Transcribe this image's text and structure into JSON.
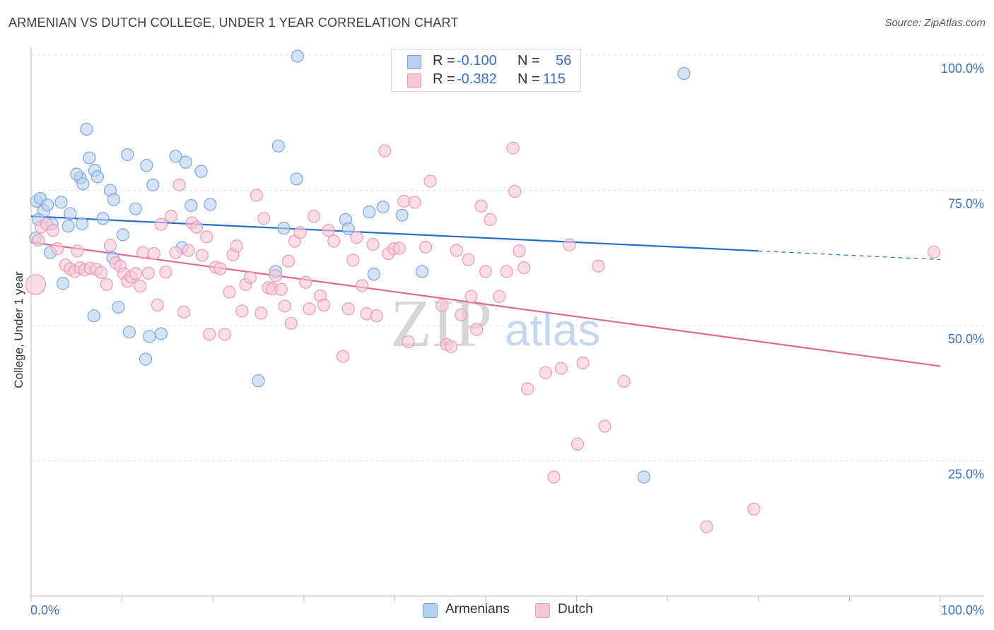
{
  "title": "ARMENIAN VS DUTCH COLLEGE, UNDER 1 YEAR CORRELATION CHART",
  "source": "Source: ZipAtlas.com",
  "watermark": {
    "zip": "ZIP",
    "atlas": "atlas"
  },
  "legend_stats": [
    {
      "r_label": "R =",
      "r_value": "-0.100",
      "n_label": "N =",
      "n_value": "56",
      "series": "Armenians"
    },
    {
      "r_label": "R =",
      "r_value": "-0.382",
      "n_label": "N =",
      "n_value": "115",
      "series": "Dutch"
    }
  ],
  "colors": {
    "armenians_fill": "#b8d1f0",
    "armenians_stroke": "#7aa6de",
    "armenians_line": "#2a6cc8",
    "dutch_fill": "#f7c6d6",
    "dutch_stroke": "#ec98b6",
    "dutch_line": "#e0698f",
    "grid": "#e3e3e3",
    "tick_label": "#3a6fc4"
  },
  "chart_data": {
    "type": "scatter",
    "title": "ARMENIAN VS DUTCH COLLEGE, UNDER 1 YEAR CORRELATION CHART",
    "xlabel": "",
    "ylabel": "College, Under 1 year",
    "xlim": [
      0,
      100
    ],
    "ylim": [
      0,
      100
    ],
    "x_tick_labels": [
      "0.0%",
      "100.0%"
    ],
    "y_ticks": [
      25,
      50,
      75,
      100
    ],
    "y_tick_labels": [
      "25.0%",
      "50.0%",
      "75.0%",
      "100.0%"
    ],
    "grid": true,
    "legend_position": "bottom-center",
    "series": [
      {
        "name": "Armenians",
        "r": -0.1,
        "n": 56,
        "trend": {
          "x0": 0,
          "y0": 70.2,
          "x1": 80,
          "y1": 63.8,
          "dashed_to_x": 100,
          "dashed_to_y": 62.2
        },
        "points": [
          [
            0.5,
            66.2
          ],
          [
            0.6,
            73.0
          ],
          [
            1.0,
            73.5
          ],
          [
            1.4,
            71.2
          ],
          [
            1.8,
            72.3
          ],
          [
            2.1,
            63.5
          ],
          [
            2.3,
            68.8
          ],
          [
            3.3,
            72.8
          ],
          [
            3.5,
            57.8
          ],
          [
            4.1,
            68.4
          ],
          [
            4.3,
            70.7
          ],
          [
            5.4,
            77.3
          ],
          [
            5.0,
            78.0
          ],
          [
            5.6,
            68.8
          ],
          [
            5.7,
            76.2
          ],
          [
            6.1,
            86.3
          ],
          [
            6.4,
            81.0
          ],
          [
            7.0,
            78.7
          ],
          [
            7.3,
            77.5
          ],
          [
            7.9,
            69.8
          ],
          [
            8.7,
            75.0
          ],
          [
            9.1,
            73.3
          ],
          [
            9.6,
            53.4
          ],
          [
            10.1,
            66.8
          ],
          [
            10.6,
            81.6
          ],
          [
            10.8,
            48.8
          ],
          [
            11.5,
            71.6
          ],
          [
            12.6,
            43.8
          ],
          [
            12.7,
            79.6
          ],
          [
            13.0,
            48.0
          ],
          [
            13.4,
            76.0
          ],
          [
            14.3,
            48.5
          ],
          [
            15.9,
            81.3
          ],
          [
            16.6,
            64.4
          ],
          [
            17.0,
            80.2
          ],
          [
            17.6,
            72.2
          ],
          [
            18.7,
            78.5
          ],
          [
            19.7,
            72.4
          ],
          [
            9.0,
            62.5
          ],
          [
            6.9,
            51.8
          ],
          [
            25.0,
            39.8
          ],
          [
            26.9,
            60.0
          ],
          [
            27.2,
            83.2
          ],
          [
            27.8,
            68.0
          ],
          [
            29.2,
            77.1
          ],
          [
            29.3,
            99.8
          ],
          [
            34.6,
            69.6
          ],
          [
            34.9,
            67.9
          ],
          [
            37.2,
            71.0
          ],
          [
            37.7,
            59.5
          ],
          [
            38.7,
            71.9
          ],
          [
            40.8,
            70.4
          ],
          [
            43.0,
            60.0
          ],
          [
            67.4,
            22.0
          ],
          [
            71.8,
            96.6
          ],
          [
            0.8,
            69.6
          ]
        ]
      },
      {
        "name": "Dutch",
        "r": -0.382,
        "n": 115,
        "trend": {
          "x0": 0,
          "y0": 65.4,
          "x1": 100,
          "y1": 42.5
        },
        "points": [
          [
            0.5,
            57.6
          ],
          [
            0.8,
            65.8
          ],
          [
            1.1,
            68.2
          ],
          [
            1.7,
            68.8
          ],
          [
            2.4,
            67.6
          ],
          [
            2.9,
            64.2
          ],
          [
            3.8,
            61.2
          ],
          [
            4.3,
            60.5
          ],
          [
            4.8,
            60.0
          ],
          [
            5.1,
            63.8
          ],
          [
            5.4,
            60.7
          ],
          [
            5.9,
            60.3
          ],
          [
            6.5,
            60.6
          ],
          [
            7.2,
            60.4
          ],
          [
            7.7,
            59.8
          ],
          [
            8.3,
            57.6
          ],
          [
            8.7,
            64.8
          ],
          [
            9.3,
            61.6
          ],
          [
            9.8,
            61.0
          ],
          [
            10.2,
            59.6
          ],
          [
            10.6,
            58.2
          ],
          [
            11.0,
            59.0
          ],
          [
            11.5,
            59.6
          ],
          [
            12.0,
            57.3
          ],
          [
            12.3,
            63.5
          ],
          [
            12.9,
            59.7
          ],
          [
            13.5,
            63.3
          ],
          [
            13.9,
            53.8
          ],
          [
            14.3,
            68.7
          ],
          [
            14.8,
            59.9
          ],
          [
            15.4,
            70.2
          ],
          [
            15.9,
            63.5
          ],
          [
            16.3,
            76.0
          ],
          [
            16.8,
            52.5
          ],
          [
            17.3,
            63.9
          ],
          [
            17.7,
            69.0
          ],
          [
            18.2,
            68.2
          ],
          [
            18.8,
            63.0
          ],
          [
            19.3,
            66.4
          ],
          [
            19.6,
            48.4
          ],
          [
            20.3,
            60.8
          ],
          [
            20.8,
            60.5
          ],
          [
            21.3,
            48.4
          ],
          [
            21.8,
            56.2
          ],
          [
            22.2,
            63.1
          ],
          [
            22.6,
            64.7
          ],
          [
            23.2,
            52.7
          ],
          [
            23.6,
            57.6
          ],
          [
            24.1,
            58.9
          ],
          [
            24.8,
            74.1
          ],
          [
            25.3,
            52.3
          ],
          [
            25.6,
            69.8
          ],
          [
            26.1,
            57.0
          ],
          [
            26.5,
            56.8
          ],
          [
            26.9,
            59.2
          ],
          [
            27.5,
            56.7
          ],
          [
            27.9,
            53.6
          ],
          [
            28.3,
            61.9
          ],
          [
            28.6,
            50.4
          ],
          [
            29.0,
            65.6
          ],
          [
            29.6,
            67.2
          ],
          [
            30.2,
            58.0
          ],
          [
            30.6,
            53.1
          ],
          [
            31.1,
            70.2
          ],
          [
            31.8,
            55.5
          ],
          [
            32.2,
            53.8
          ],
          [
            32.7,
            67.6
          ],
          [
            33.3,
            65.6
          ],
          [
            34.3,
            44.3
          ],
          [
            34.9,
            53.1
          ],
          [
            35.4,
            62.1
          ],
          [
            35.8,
            66.3
          ],
          [
            36.4,
            57.4
          ],
          [
            36.9,
            52.2
          ],
          [
            37.6,
            65.0
          ],
          [
            38.0,
            51.8
          ],
          [
            38.9,
            82.3
          ],
          [
            39.3,
            63.3
          ],
          [
            39.9,
            64.2
          ],
          [
            40.5,
            64.3
          ],
          [
            41.0,
            73.0
          ],
          [
            41.5,
            47.0
          ],
          [
            42.2,
            72.8
          ],
          [
            43.4,
            64.5
          ],
          [
            43.9,
            76.7
          ],
          [
            45.2,
            53.7
          ],
          [
            45.7,
            46.5
          ],
          [
            46.2,
            46.1
          ],
          [
            46.8,
            63.9
          ],
          [
            47.3,
            52.0
          ],
          [
            48.1,
            62.2
          ],
          [
            48.4,
            55.4
          ],
          [
            49.0,
            49.3
          ],
          [
            49.5,
            72.1
          ],
          [
            50.0,
            60.0
          ],
          [
            50.5,
            69.6
          ],
          [
            51.5,
            55.4
          ],
          [
            52.3,
            60.0
          ],
          [
            53.0,
            82.8
          ],
          [
            53.2,
            74.8
          ],
          [
            53.7,
            63.8
          ],
          [
            54.2,
            60.7
          ],
          [
            54.6,
            38.3
          ],
          [
            56.6,
            41.3
          ],
          [
            57.5,
            22.0
          ],
          [
            58.3,
            42.1
          ],
          [
            59.2,
            64.9
          ],
          [
            60.1,
            28.1
          ],
          [
            60.7,
            43.1
          ],
          [
            62.4,
            61.0
          ],
          [
            63.1,
            31.4
          ],
          [
            65.2,
            39.7
          ],
          [
            74.3,
            12.8
          ],
          [
            79.5,
            16.1
          ],
          [
            99.3,
            63.6
          ]
        ]
      }
    ]
  },
  "bottom_legend": [
    {
      "label": "Armenians"
    },
    {
      "label": "Dutch"
    }
  ]
}
